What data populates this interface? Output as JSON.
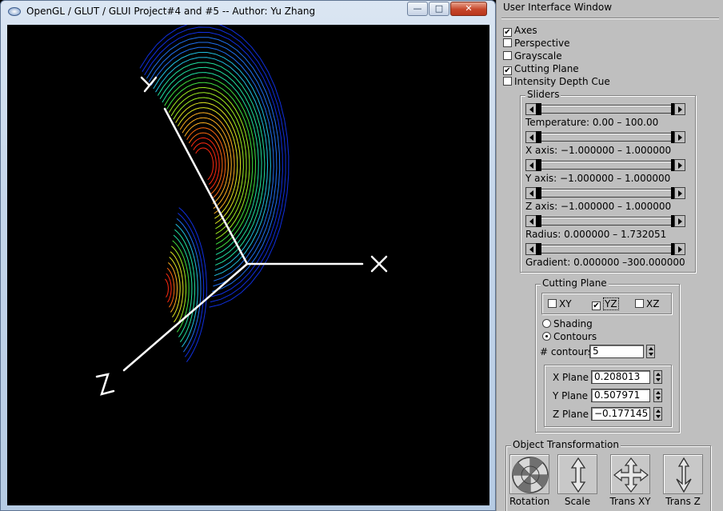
{
  "window": {
    "title": "OpenGL / GLUT / GLUI Project#4 and #5 -- Author: Yu Zhang",
    "min_glyph": "—",
    "max_glyph": "□",
    "close_glyph": "✕"
  },
  "scene": {
    "axis_labels": {
      "x": "X",
      "y": "Y",
      "z": "Z"
    },
    "contour_colors": [
      "#ff2a10",
      "#ff6a10",
      "#ffb020",
      "#e0e820",
      "#a0f020",
      "#40e040",
      "#20e0a0",
      "#20c0e0",
      "#2070f0",
      "#1030e0"
    ]
  },
  "panel": {
    "title": "User Interface Window",
    "checkboxes": [
      {
        "label": "Axes",
        "checked": true
      },
      {
        "label": "Perspective",
        "checked": false
      },
      {
        "label": "Grayscale",
        "checked": false
      },
      {
        "label": "Cutting Plane",
        "checked": true
      },
      {
        "label": "Intensity Depth Cue",
        "checked": false
      }
    ],
    "sliders_title": "Sliders",
    "sliders": [
      {
        "caption": "Temperature:  0.00 – 100.00"
      },
      {
        "caption": "X axis: −1.000000 – 1.000000"
      },
      {
        "caption": "Y axis: −1.000000 – 1.000000"
      },
      {
        "caption": "Z axis: −1.000000 – 1.000000"
      },
      {
        "caption": "Radius: 0.000000 – 1.732051"
      },
      {
        "caption": "Gradient: 0.000000 –300.000000"
      }
    ],
    "cutting_plane": {
      "title": "Cutting Plane",
      "planes": [
        {
          "label": "XY",
          "checked": false
        },
        {
          "label": "YZ",
          "checked": true
        },
        {
          "label": "XZ",
          "checked": false
        }
      ],
      "modes": [
        {
          "label": "Shading",
          "selected": false
        },
        {
          "label": "Contours",
          "selected": true
        }
      ],
      "contours_label": "# contours",
      "contours_value": "5",
      "plane_values": [
        {
          "label": "X Plane",
          "value": "0.208013"
        },
        {
          "label": "Y Plane",
          "value": "0.507971"
        },
        {
          "label": "Z Plane",
          "value": "−0.177145"
        }
      ]
    },
    "transform": {
      "title": "Object Transformation",
      "buttons": [
        {
          "label": "Rotation"
        },
        {
          "label": "Scale"
        },
        {
          "label": "Trans XY"
        },
        {
          "label": "Trans Z"
        }
      ]
    }
  }
}
